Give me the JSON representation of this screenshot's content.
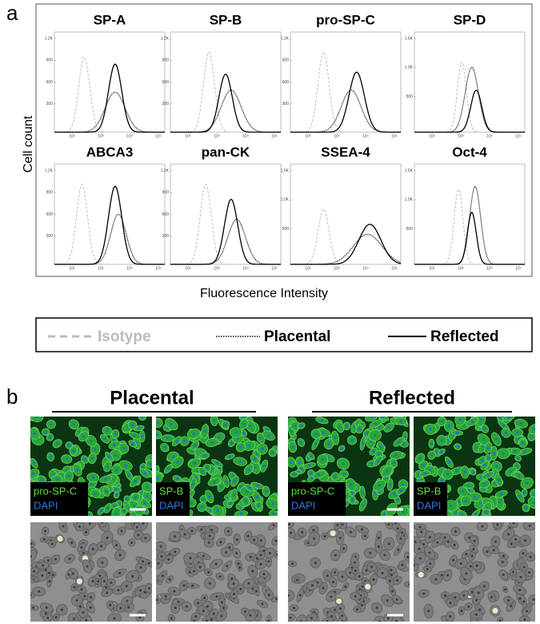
{
  "panel_a": {
    "label": "a",
    "y_axis_label": "Cell count",
    "x_axis_label": "Fluorescence Intensity",
    "plots": [
      {
        "title": "SP-A",
        "yticks": [
          "1.2K",
          "900",
          "600",
          "300"
        ],
        "xticks": [
          "10²",
          "10³",
          "10⁴",
          "10⁵"
        ]
      },
      {
        "title": "SP-B",
        "yticks": [
          "1.2K",
          "900",
          "600",
          "300"
        ],
        "xticks": [
          "10²",
          "10³",
          "10⁴",
          "10⁵"
        ]
      },
      {
        "title": "pro-SP-C",
        "yticks": [
          "1.2K",
          "900",
          "600",
          "300"
        ],
        "xticks": [
          "10²",
          "10³",
          "10⁴",
          "10⁵"
        ]
      },
      {
        "title": "SP-D",
        "yticks": [
          "1.5K",
          "1.0K",
          "500"
        ],
        "xticks": [
          "10²",
          "10³",
          "10⁴",
          "10⁵"
        ]
      },
      {
        "title": "ABCA3",
        "yticks": [
          "1.2K",
          "900",
          "600",
          "300"
        ],
        "xticks": [
          "10²",
          "10³",
          "10⁴",
          "10⁵"
        ]
      },
      {
        "title": "pan-CK",
        "yticks": [
          "1.2K",
          "900",
          "600",
          "300"
        ],
        "xticks": [
          "10²",
          "10³",
          "10⁴",
          "10⁵"
        ]
      },
      {
        "title": "SSEA-4",
        "yticks": [
          "1.5K",
          "1.0K",
          "500"
        ],
        "xticks": [
          "10²",
          "10³",
          "10⁴",
          "10⁵"
        ]
      },
      {
        "title": "Oct-4",
        "yticks": [
          "1.5K",
          "1.0K",
          "500"
        ],
        "xticks": [
          "10²",
          "10³",
          "10⁴",
          "10⁵"
        ]
      }
    ]
  },
  "legend": {
    "items": [
      "Isotype",
      "Placental",
      "Reflected"
    ]
  },
  "panel_b": {
    "label": "b",
    "groups": [
      {
        "title": "Placental",
        "images": [
          {
            "stain": "pro-SP-C",
            "counterstain": "DAPI"
          },
          {
            "stain": "SP-B",
            "counterstain": "DAPI"
          }
        ]
      },
      {
        "title": "Reflected",
        "images": [
          {
            "stain": "pro-SP-C",
            "counterstain": "DAPI"
          },
          {
            "stain": "SP-B",
            "counterstain": "DAPI"
          }
        ]
      }
    ]
  }
}
